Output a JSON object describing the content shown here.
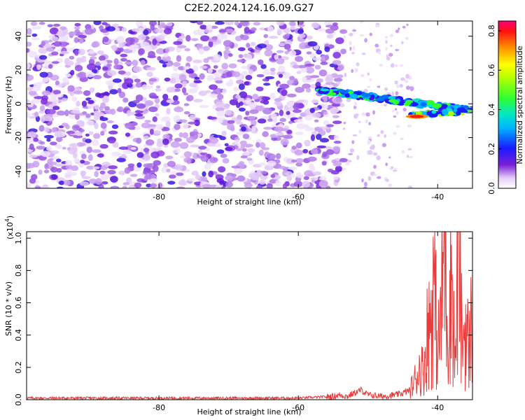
{
  "title": "C2E2.2024.124.16.09.G27",
  "colors": {
    "axis": "#000000",
    "snr_line": "#e83b3b",
    "background": "#ffffff"
  },
  "chart_data": [
    {
      "type": "heatmap",
      "xlabel": "Height of straight line (km)",
      "ylabel": "Frequency (Hz)",
      "xlim": [
        -99,
        -35
      ],
      "ylim": [
        -50,
        49
      ],
      "x_ticks": [
        -80,
        -60,
        -40
      ],
      "y_ticks": [
        -40,
        -20,
        0,
        20,
        40
      ],
      "colorbar": {
        "label": "Normalized spectral amplitude",
        "range": [
          0.0,
          0.85
        ],
        "ticks": [
          0.0,
          0.2,
          0.4,
          0.6,
          0.8
        ],
        "colormap": "rainbow (violet to red)"
      },
      "features": [
        {
          "name": "noise region",
          "x_range": [
            -99,
            -53.5
          ],
          "amplitude": "low 0.0-0.15"
        },
        {
          "name": "signal track",
          "x_start": -57,
          "y_start": 8,
          "x_end": -35,
          "y_end": -4,
          "peak_amplitude": 0.85,
          "peak_x": -43
        }
      ]
    },
    {
      "type": "line",
      "xlabel": "Height of straight line (km)",
      "ylabel": "SNR (10 * v/v)",
      "y_multiplier": "(x10",
      "y_multiplier_exp": "4",
      "xlim": [
        -99,
        -35
      ],
      "ylim": [
        0,
        1.04
      ],
      "x_ticks": [
        -80,
        -60,
        -40
      ],
      "y_ticks": [
        0.0,
        0.2,
        0.4,
        0.6,
        0.8,
        1.0
      ],
      "series": [
        {
          "x": [
            -99,
            -90,
            -80,
            -70,
            -60,
            -55,
            -54,
            -53,
            -52,
            -51,
            -50,
            -48,
            -46,
            -45,
            -44,
            -43.5,
            -43,
            -42.5,
            -42,
            -41.5,
            -41,
            -40.5,
            -40,
            -39.5,
            -39,
            -38.5,
            -38,
            -37.5,
            -37,
            -36.5,
            -36,
            -35.5,
            -35
          ],
          "y": [
            0.01,
            0.01,
            0.01,
            0.01,
            0.01,
            0.02,
            0.03,
            0.02,
            0.04,
            0.06,
            0.03,
            0.02,
            0.03,
            0.04,
            0.06,
            0.1,
            0.15,
            0.2,
            0.18,
            0.4,
            0.5,
            0.72,
            0.3,
            0.52,
            1.03,
            0.38,
            0.85,
            0.2,
            0.95,
            0.35,
            0.45,
            0.3,
            0.55
          ]
        }
      ]
    }
  ]
}
